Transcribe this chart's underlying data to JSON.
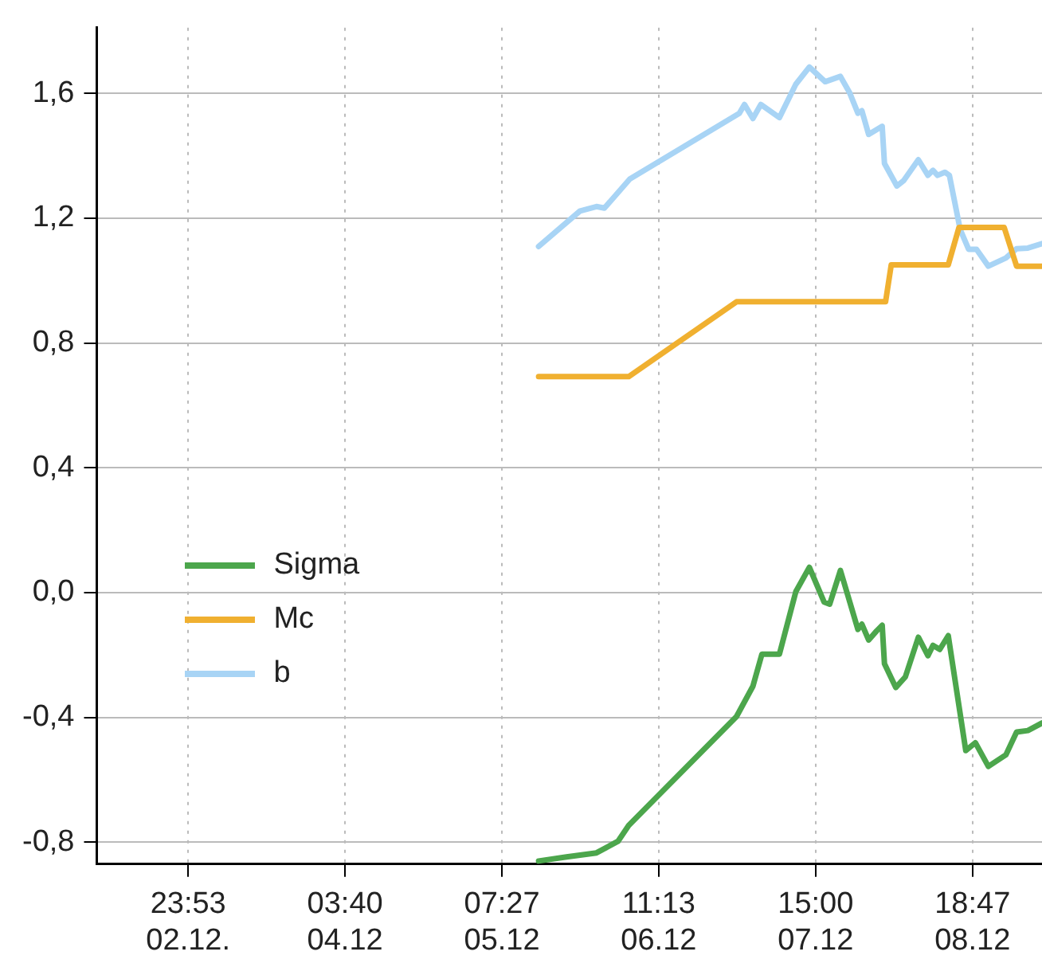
{
  "chart_data": {
    "type": "line",
    "xlim": [
      "--12-02T07:42",
      "--12-09T07:06"
    ],
    "xticks": [
      {
        "value": "--12-02T23:53",
        "label": "23:53 02.12."
      },
      {
        "value": "--12-04T03:40",
        "label": "03:40 04.12"
      },
      {
        "value": "--12-05T07:27",
        "label": "07:27 05.12"
      },
      {
        "value": "--12-06T11:13",
        "label": "11:13 06.12"
      },
      {
        "value": "--12-07T15:00",
        "label": "15:00 07.12"
      },
      {
        "value": "--12-08T18:47",
        "label": "18:47 08.12"
      }
    ],
    "ylim": [
      -0.87,
      1.81
    ],
    "yticks": [
      {
        "value": -0.8,
        "label": "-0,8"
      },
      {
        "value": -0.4,
        "label": "-0,4"
      },
      {
        "value": 0,
        "label": "0,0"
      },
      {
        "value": 0.4,
        "label": "0,4"
      },
      {
        "value": 0.8,
        "label": "0,8"
      },
      {
        "value": 1.2,
        "label": "1,2"
      },
      {
        "value": 1.6,
        "label": "1,6"
      }
    ],
    "grid": true,
    "legend": "bottom left",
    "marker": "none",
    "line_style": "solid",
    "series": [
      {
        "name": "Sigma",
        "color": "#4ca64c",
        "x": [
          "--12-05T13:57",
          "--12-05T18:54",
          "--12-06T00:12",
          "--12-06T04:00",
          "--12-06T05:54",
          "--12-07T01:00",
          "--12-07T03:54",
          "--12-07T05:30",
          "--12-07T08:36",
          "--12-07T11:30",
          "--12-07T13:54",
          "--12-07T16:30",
          "--12-07T17:30",
          "--12-07T19:24",
          "--12-07T22:30",
          "--12-07T23:12",
          "--12-08T00:24",
          "--12-08T01:48",
          "--12-08T02:48",
          "--12-08T03:12",
          "--12-08T05:12",
          "--12-08T06:54",
          "--12-08T09:12",
          "--12-08T10:54",
          "--12-08T11:48",
          "--12-08T13:00",
          "--12-08T14:30",
          "--12-08T17:36",
          "--12-08T19:18",
          "--12-08T21:36",
          "--12-09T00:42",
          "--12-09T02:36",
          "--12-09T04:36",
          "--12-09T07:06"
        ],
        "values": [
          -0.86,
          -0.847,
          -0.834,
          -0.797,
          -0.746,
          -0.397,
          -0.3,
          -0.197,
          -0.197,
          0.003,
          0.081,
          -0.03,
          -0.037,
          0.071,
          -0.118,
          -0.101,
          -0.152,
          -0.123,
          -0.105,
          -0.228,
          -0.304,
          -0.27,
          -0.143,
          -0.202,
          -0.169,
          -0.182,
          -0.138,
          -0.506,
          -0.481,
          -0.557,
          -0.52,
          -0.447,
          -0.442,
          -0.418
        ]
      },
      {
        "name": "Mc",
        "color": "#f0b030",
        "x": [
          "--12-05T13:57",
          "--12-06T05:54",
          "--12-07T01:00",
          "--12-08T03:24",
          "--12-08T04:24",
          "--12-08T14:30",
          "--12-08T16:24",
          "--12-09T00:24",
          "--12-09T02:36",
          "--12-09T07:06"
        ],
        "values": [
          0.692,
          0.692,
          0.932,
          0.932,
          1.05,
          1.05,
          1.17,
          1.17,
          1.046,
          1.046
        ]
      },
      {
        "name": "b",
        "color": "#a8d4f5",
        "x": [
          "--12-05T13:57",
          "--12-05T21:18",
          "--12-06T00:12",
          "--12-06T01:36",
          "--12-06T06:06",
          "--12-07T01:30",
          "--12-07T02:24",
          "--12-07T03:54",
          "--12-07T05:18",
          "--12-07T08:36",
          "--12-07T11:30",
          "--12-07T13:54",
          "--12-07T16:42",
          "--12-07T19:24",
          "--12-07T21:00",
          "--12-07T22:30",
          "--12-07T23:12",
          "--12-08T00:24",
          "--12-08T02:48",
          "--12-08T03:12",
          "--12-08T05:24",
          "--12-08T06:36",
          "--12-08T09:12",
          "--12-08T10:54",
          "--12-08T11:48",
          "--12-08T12:36",
          "--12-08T13:54",
          "--12-08T14:42",
          "--12-08T16:36",
          "--12-08T18:06",
          "--12-08T19:30",
          "--12-08T21:36",
          "--12-09T00:42",
          "--12-09T02:36",
          "--12-09T04:36",
          "--12-09T07:06"
        ],
        "values": [
          1.109,
          1.223,
          1.237,
          1.232,
          1.325,
          1.536,
          1.564,
          1.519,
          1.564,
          1.522,
          1.629,
          1.684,
          1.637,
          1.654,
          1.603,
          1.536,
          1.544,
          1.468,
          1.494,
          1.375,
          1.303,
          1.32,
          1.387,
          1.337,
          1.353,
          1.337,
          1.347,
          1.337,
          1.164,
          1.1,
          1.1,
          1.046,
          1.072,
          1.102,
          1.104,
          1.118
        ]
      }
    ]
  }
}
